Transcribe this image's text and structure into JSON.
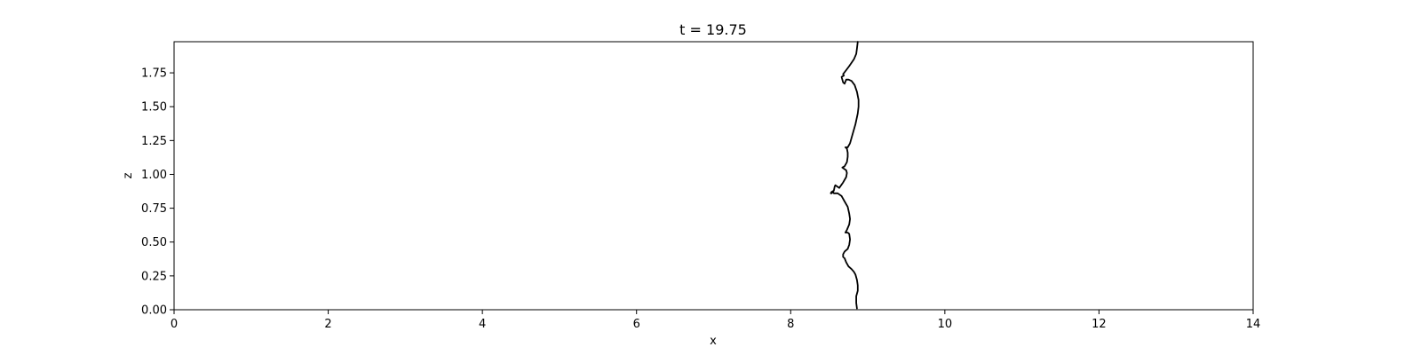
{
  "chart_data": {
    "type": "line",
    "title": "t = 19.75",
    "xlabel": "x",
    "ylabel": "z",
    "xlim": [
      0,
      14
    ],
    "ylim": [
      0,
      1.98
    ],
    "xticks": [
      0,
      2,
      4,
      6,
      8,
      10,
      12,
      14
    ],
    "xtick_labels": [
      "0",
      "2",
      "4",
      "6",
      "8",
      "10",
      "12",
      "14"
    ],
    "yticks": [
      0,
      0.25,
      0.5,
      0.75,
      1.0,
      1.25,
      1.5,
      1.75
    ],
    "ytick_labels": [
      "0.00",
      "0.25",
      "0.50",
      "0.75",
      "1.00",
      "1.25",
      "1.50",
      "1.75"
    ],
    "grid": false,
    "legend": "none",
    "series": [
      {
        "color": "#000000",
        "x": [
          8.86,
          8.85,
          8.85,
          8.87,
          8.87,
          8.86,
          8.84,
          8.82,
          8.79,
          8.75,
          8.72,
          8.7,
          8.68,
          8.68,
          8.7,
          8.74,
          8.76,
          8.77,
          8.76,
          8.74,
          8.71,
          8.73,
          8.76,
          8.77,
          8.76,
          8.74,
          8.7,
          8.66,
          8.61,
          8.56,
          8.55,
          8.53,
          8.52,
          8.53,
          8.56,
          8.57,
          8.58,
          8.63,
          8.68,
          8.72,
          8.73,
          8.72,
          8.67,
          8.7,
          8.73,
          8.74,
          8.74,
          8.73,
          8.71,
          8.74,
          8.77,
          8.8,
          8.84,
          8.87,
          8.88,
          8.88,
          8.86,
          8.83,
          8.79,
          8.75,
          8.72,
          8.7,
          8.68,
          8.66,
          8.69,
          8.68,
          8.72,
          8.76,
          8.82,
          8.85,
          8.86,
          8.87
        ],
        "y": [
          0.01,
          0.05,
          0.1,
          0.14,
          0.18,
          0.22,
          0.26,
          0.28,
          0.3,
          0.32,
          0.35,
          0.38,
          0.39,
          0.41,
          0.43,
          0.45,
          0.48,
          0.52,
          0.56,
          0.57,
          0.57,
          0.59,
          0.63,
          0.67,
          0.71,
          0.76,
          0.8,
          0.84,
          0.86,
          0.86,
          0.87,
          0.86,
          0.86,
          0.87,
          0.88,
          0.91,
          0.92,
          0.9,
          0.94,
          0.98,
          1.01,
          1.03,
          1.05,
          1.06,
          1.09,
          1.13,
          1.16,
          1.19,
          1.2,
          1.2,
          1.23,
          1.29,
          1.37,
          1.45,
          1.5,
          1.55,
          1.61,
          1.66,
          1.69,
          1.7,
          1.7,
          1.67,
          1.68,
          1.72,
          1.73,
          1.74,
          1.77,
          1.8,
          1.85,
          1.89,
          1.93,
          1.98
        ]
      }
    ]
  }
}
